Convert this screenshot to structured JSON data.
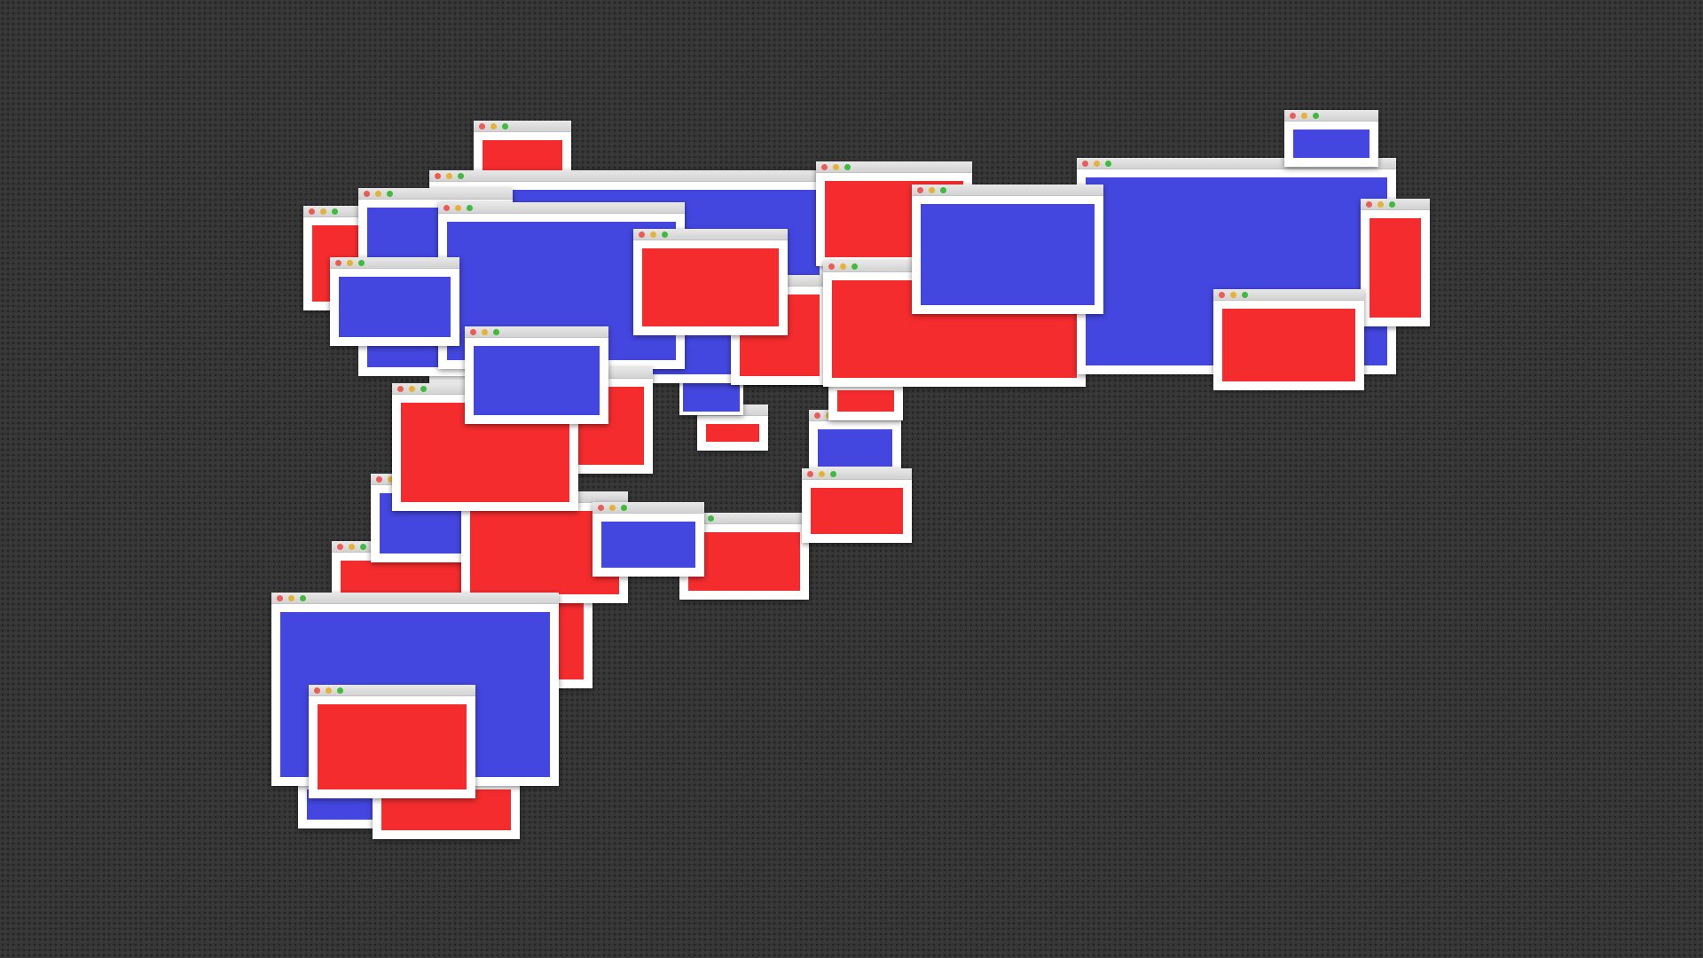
{
  "colors": {
    "background": "#363636",
    "red": "#f52c2e",
    "blue": "#4447df",
    "window_frame": "#ffffff",
    "title_bar": "#dadada",
    "close_dot": "#ec5b56",
    "minimize_dot": "#e6b235",
    "maximize_dot": "#3ebb3c"
  },
  "window_colors": [
    "blue",
    "red",
    "red",
    "red",
    "blue",
    "red",
    "red",
    "blue",
    "blue",
    "red",
    "blue",
    "red",
    "red",
    "red",
    "blue",
    "red",
    "blue",
    "red",
    "blue",
    "blue",
    "red",
    "blue",
    "red",
    "red",
    "blue",
    "red",
    "red",
    "red",
    "blue",
    "blue",
    "red",
    "blue"
  ]
}
